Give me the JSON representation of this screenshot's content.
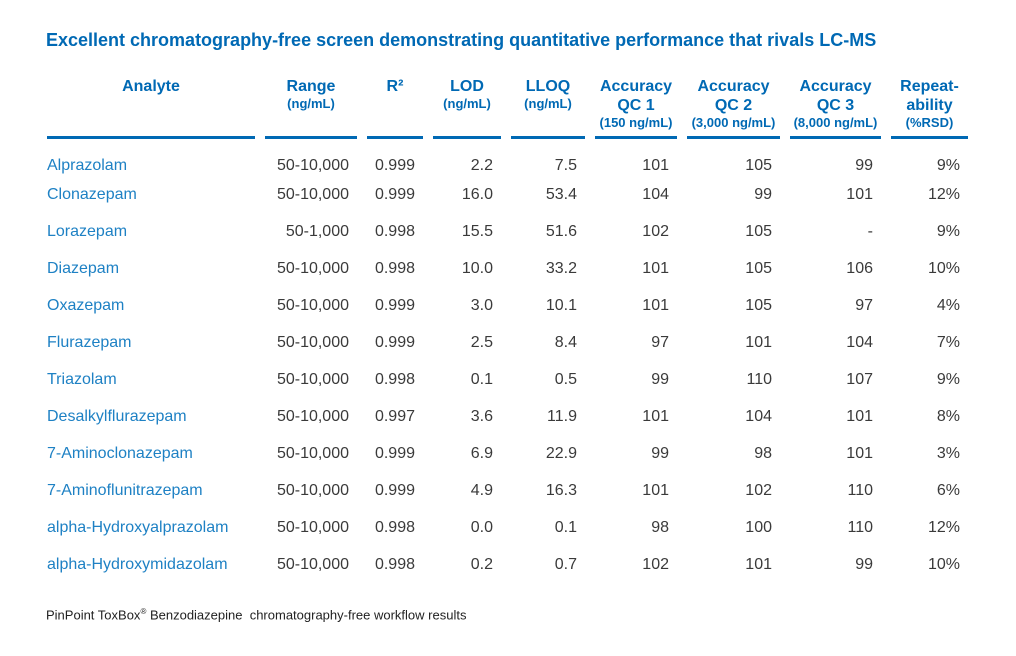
{
  "title": "Excellent chromatography-free screen demonstrating quantitative performance that rivals LC-MS",
  "colors": {
    "header_blue": "#0069b4",
    "analyte_blue": "#1e81c4",
    "body_text": "#3a3a3a",
    "footer_text": "#222222"
  },
  "table": {
    "columns": [
      {
        "key": "analyte",
        "label": "Analyte",
        "sub": ""
      },
      {
        "key": "range",
        "label": "Range",
        "sub": "(ng/mL)"
      },
      {
        "key": "r2",
        "label": "R²",
        "sub": ""
      },
      {
        "key": "lod",
        "label": "LOD",
        "sub": "(ng/mL)"
      },
      {
        "key": "lloq",
        "label": "LLOQ",
        "sub": "(ng/mL)"
      },
      {
        "key": "qc1",
        "label": "Accuracy QC 1",
        "sub": "(150 ng/mL)"
      },
      {
        "key": "qc2",
        "label": "Accuracy QC 2",
        "sub": "(3,000 ng/mL)"
      },
      {
        "key": "qc3",
        "label": "Accuracy QC 3",
        "sub": "(8,000 ng/mL)"
      },
      {
        "key": "repeatability",
        "label": "Repeat-ability",
        "sub": "(%RSD)"
      }
    ],
    "rows": [
      [
        "Alprazolam",
        "50-10,000",
        "0.999",
        "2.2",
        "7.5",
        "101",
        "105",
        "99",
        "9%"
      ],
      [
        "Clonazepam",
        "50-10,000",
        "0.999",
        "16.0",
        "53.4",
        "104",
        "99",
        "101",
        "12%"
      ],
      [
        "Lorazepam",
        "50-1,000",
        "0.998",
        "15.5",
        "51.6",
        "102",
        "105",
        "-",
        "9%"
      ],
      [
        "Diazepam",
        "50-10,000",
        "0.998",
        "10.0",
        "33.2",
        "101",
        "105",
        "106",
        "10%"
      ],
      [
        "Oxazepam",
        "50-10,000",
        "0.999",
        "3.0",
        "10.1",
        "101",
        "105",
        "97",
        "4%"
      ],
      [
        "Flurazepam",
        "50-10,000",
        "0.999",
        "2.5",
        "8.4",
        "97",
        "101",
        "104",
        "7%"
      ],
      [
        "Triazolam",
        "50-10,000",
        "0.998",
        "0.1",
        "0.5",
        "99",
        "110",
        "107",
        "9%"
      ],
      [
        "Desalkylflurazepam",
        "50-10,000",
        "0.997",
        "3.6",
        "11.9",
        "101",
        "104",
        "101",
        "8%"
      ],
      [
        "7-Aminoclonazepam",
        "50-10,000",
        "0.999",
        "6.9",
        "22.9",
        "99",
        "98",
        "101",
        "3%"
      ],
      [
        "7-Aminoflunitrazepam",
        "50-10,000",
        "0.999",
        "4.9",
        "16.3",
        "101",
        "102",
        "110",
        "6%"
      ],
      [
        "alpha-Hydroxyalprazolam",
        "50-10,000",
        "0.998",
        "0.0",
        "0.1",
        "98",
        "100",
        "110",
        "12%"
      ],
      [
        "alpha-Hydroxymidazolam",
        "50-10,000",
        "0.998",
        "0.2",
        "0.7",
        "102",
        "101",
        "99",
        "10%"
      ]
    ]
  },
  "footer": {
    "product": "PinPoint ToxBox",
    "reg_mark": "®",
    "description": " Benzodiazepine  chromatography-free workflow results"
  }
}
